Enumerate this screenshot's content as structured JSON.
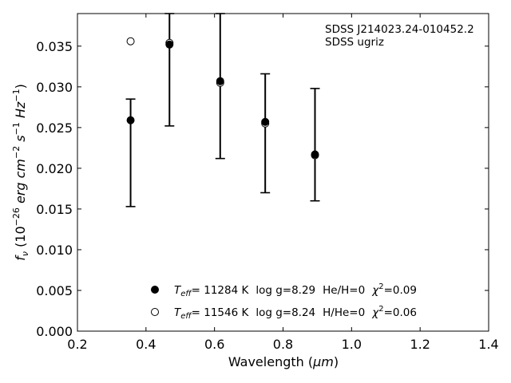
{
  "chart_data": {
    "type": "scatter",
    "xlabel": "Wavelength",
    "xlabel_unit": "μm",
    "ylabel": {
      "f": "f",
      "f_sub": "ν",
      "open": " (10",
      "exp1": "−26",
      "erg": " erg cm",
      "exp2": "−2",
      "s": " s",
      "exp3": "−1",
      "hz": " Hz",
      "exp4": "−1",
      "close": ")"
    },
    "xlim": [
      0.2,
      1.4
    ],
    "ylim": [
      0.0,
      0.039
    ],
    "x_ticks": [
      0.2,
      0.4,
      0.6,
      0.8,
      1.0,
      1.2,
      1.4
    ],
    "x_tick_labels": [
      "0.2",
      "0.4",
      "0.6",
      "0.8",
      "1.0",
      "1.2",
      "1.4"
    ],
    "y_ticks": [
      0.0,
      0.005,
      0.01,
      0.015,
      0.02,
      0.025,
      0.03,
      0.035
    ],
    "y_tick_labels": [
      "0.000",
      "0.005",
      "0.010",
      "0.015",
      "0.020",
      "0.025",
      "0.030",
      "0.035"
    ],
    "grid": false,
    "annotation_lines": [
      "SDSS J214023.24-010452.2",
      "SDSS ugriz"
    ],
    "series": [
      {
        "kind": "observed",
        "marker": "filled-circle",
        "color": "#000000",
        "x": [
          0.3551,
          0.4686,
          0.6166,
          0.748,
          0.8932
        ],
        "y": [
          0.0259,
          0.0352,
          0.0307,
          0.0257,
          0.0217
        ],
        "yerr_low": [
          0.0153,
          0.0252,
          0.0212,
          0.017,
          0.016
        ],
        "yerr_high": [
          0.0285,
          0.039,
          0.039,
          0.0316,
          0.0298
        ]
      },
      {
        "kind": "model",
        "marker": "open-circle",
        "color": "#000000",
        "x": [
          0.3551,
          0.4686,
          0.6166,
          0.748,
          0.8932
        ],
        "y": [
          0.0356,
          0.0354,
          0.0305,
          0.0255,
          0.0216
        ]
      }
    ],
    "legend": {
      "placement": "lower-center",
      "entries": [
        {
          "marker": "filled-circle",
          "T": "T",
          "T_sub": "eff",
          "teff": "= 11284 K",
          "logg": "log g=8.29",
          "comp": "He/H=0",
          "chi": "χ",
          "chi_sup": "2",
          "chi_val": "=0.09"
        },
        {
          "marker": "open-circle",
          "T": "T",
          "T_sub": "eff",
          "teff": "= 11546 K",
          "logg": "log g=8.24",
          "comp": "H/He=0",
          "chi": "χ",
          "chi_sup": "2",
          "chi_val": "=0.06"
        }
      ]
    }
  }
}
